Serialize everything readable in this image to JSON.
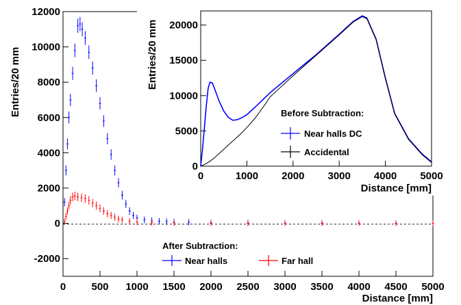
{
  "chart_data": [
    {
      "type": "scatter",
      "title": "After Subtraction:",
      "xlabel": "Distance [mm]",
      "ylabel": "Entries/20 mm",
      "xlim": [
        0,
        5000
      ],
      "ylim": [
        -3000,
        12000
      ],
      "xticks": [
        "0",
        "500",
        "1000",
        "1500",
        "2000",
        "2500",
        "3000",
        "3500",
        "4000",
        "4500",
        "5000"
      ],
      "yticks": [
        "-2000",
        "0",
        "2000",
        "4000",
        "6000",
        "8000",
        "10000",
        "12000"
      ],
      "legend": "bottom-center",
      "zero_line": "dashed",
      "colors": {
        "near": "#0000ff",
        "far": "#ff0000"
      },
      "series": [
        {
          "name": "Near halls",
          "x": [
            20,
            40,
            60,
            80,
            100,
            130,
            160,
            200,
            230,
            260,
            300,
            350,
            400,
            450,
            500,
            550,
            600,
            650,
            700,
            750,
            800,
            850,
            900,
            950,
            1000,
            1100,
            1200,
            1300,
            1400,
            1500,
            1700,
            2000,
            2500,
            3000,
            3500,
            4000,
            4500,
            5000
          ],
          "y": [
            1200,
            3000,
            4500,
            6000,
            7000,
            8500,
            9800,
            11200,
            11300,
            11000,
            10500,
            9700,
            8800,
            7800,
            6800,
            5800,
            4800,
            3900,
            3000,
            2300,
            1600,
            1100,
            700,
            450,
            300,
            200,
            150,
            120,
            100,
            80,
            60,
            40,
            30,
            20,
            20,
            10,
            10,
            0
          ]
        },
        {
          "name": "Far hall",
          "x": [
            20,
            40,
            60,
            80,
            100,
            130,
            160,
            200,
            250,
            300,
            350,
            400,
            450,
            500,
            550,
            600,
            650,
            700,
            750,
            800,
            900,
            1000,
            1200,
            1500,
            2000,
            2500,
            3000,
            3500,
            4000,
            4500,
            5000
          ],
          "y": [
            100,
            400,
            700,
            1000,
            1300,
            1500,
            1550,
            1500,
            1450,
            1400,
            1300,
            1150,
            1000,
            850,
            700,
            550,
            450,
            350,
            250,
            200,
            120,
            80,
            40,
            20,
            10,
            0,
            10,
            0,
            10,
            0,
            0
          ]
        }
      ]
    },
    {
      "type": "line",
      "title": "Before Subtraction:",
      "xlabel": "Distance [mm]",
      "ylabel": "Entries/20 mm",
      "xlim": [
        0,
        5000
      ],
      "ylim": [
        0,
        22000
      ],
      "xticks": [
        "0",
        "1000",
        "2000",
        "3000",
        "4000",
        "5000"
      ],
      "yticks": [
        "0",
        "5000",
        "10000",
        "15000",
        "20000"
      ],
      "legend": "center-right",
      "colors": {
        "dc": "#0000ff",
        "accidental": "#000000"
      },
      "series": [
        {
          "name": "Near halls DC",
          "x": [
            0,
            40,
            80,
            120,
            160,
            200,
            250,
            300,
            400,
            500,
            600,
            700,
            800,
            900,
            1000,
            1200,
            1500,
            2000,
            2500,
            3000,
            3300,
            3500,
            3600,
            3800,
            4000,
            4200,
            4500,
            4800,
            5000
          ],
          "y": [
            0,
            2500,
            5500,
            8500,
            11000,
            11900,
            11800,
            11000,
            9200,
            7800,
            6900,
            6500,
            6600,
            6900,
            7300,
            8500,
            10400,
            13100,
            15800,
            18700,
            20500,
            21300,
            21000,
            18000,
            12500,
            7500,
            3900,
            1700,
            600
          ]
        },
        {
          "name": "Accidental",
          "x": [
            0,
            100,
            200,
            300,
            400,
            500,
            600,
            700,
            800,
            900,
            1000,
            1100,
            1200,
            1300,
            1400,
            1500,
            2000,
            2500,
            3000,
            3300,
            3500,
            3600,
            3800,
            4000,
            4200,
            4500,
            4800,
            5000
          ],
          "y": [
            0,
            300,
            700,
            1200,
            1800,
            2400,
            3000,
            3600,
            4200,
            4800,
            5500,
            6200,
            7000,
            7900,
            8800,
            9800,
            12800,
            15700,
            18600,
            20400,
            21200,
            20900,
            17900,
            12400,
            7400,
            3800,
            1600,
            500
          ]
        }
      ]
    }
  ]
}
